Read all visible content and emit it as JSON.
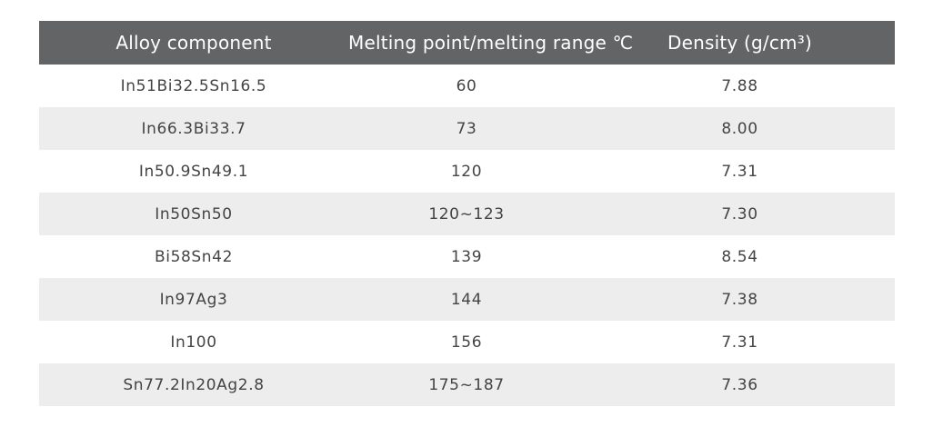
{
  "table": {
    "headers": [
      "Alloy component",
      "Melting point/melting range ℃",
      "Density (g/cm³)"
    ],
    "rows": [
      [
        "In51Bi32.5Sn16.5",
        "60",
        "7.88"
      ],
      [
        "In66.3Bi33.7",
        "73",
        "8.00"
      ],
      [
        "In50.9Sn49.1",
        "120",
        "7.31"
      ],
      [
        "In50Sn50",
        "120~123",
        "7.30"
      ],
      [
        "Bi58Sn42",
        "139",
        "8.54"
      ],
      [
        "In97Ag3",
        "144",
        "7.38"
      ],
      [
        "In100",
        "156",
        "7.31"
      ],
      [
        "Sn77.2In20Ag2.8",
        "175~187",
        "7.36"
      ]
    ],
    "colors": {
      "header_bg": "#636466",
      "header_text": "#ffffff",
      "shade_bg": "#ededed",
      "body_text": "#444444"
    }
  }
}
